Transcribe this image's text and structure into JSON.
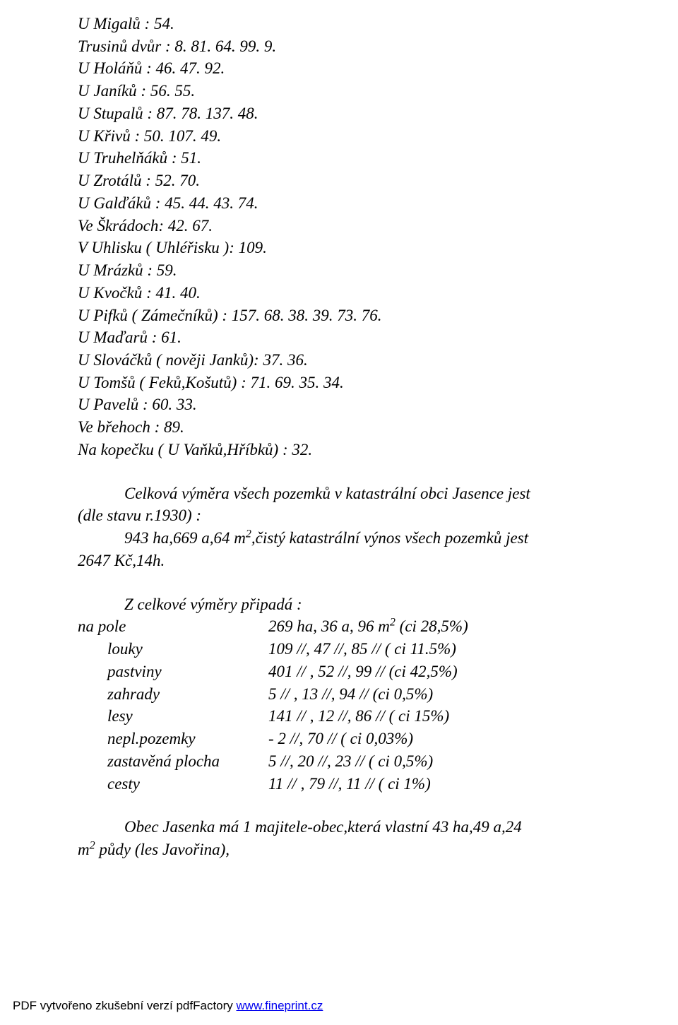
{
  "list": [
    "U Migalů : 54.",
    "Trusinů dvůr : 8. 81. 64. 99. 9.",
    "U Holáňů : 46. 47. 92.",
    "U Janíků : 56. 55.",
    "U Stupalů : 87. 78. 137. 48.",
    "U Křivů : 50. 107. 49.",
    "U Truhelňáků : 51.",
    "U Zrotálů : 52. 70.",
    "U Galďáků : 45. 44. 43. 74.",
    "Ve Škrádoch: 42. 67.",
    "V Uhlisku ( Uhléřisku ): 109.",
    "U Mrázků : 59.",
    "U Kvočků : 41. 40.",
    "U Pifků ( Zámečníků) : 157. 68. 38. 39. 73. 76.",
    "U Maďarů : 61.",
    "U Slováčků ( nověji Janků): 37. 36.",
    "U Tomšů ( Feků,Košutů) : 71. 69. 35. 34.",
    "U Pavelů : 60. 33.",
    "Ve břehoch : 89.",
    "Na kopečku ( U Vaňků,Hříbků) : 32."
  ],
  "para1": {
    "l1": "Celková výměra všech pozemků v katastrální obci Jasence jest",
    "l2": "(dle stavu r.1930) :",
    "l3_pre": "943 ha,669 a,64 m",
    "l3_sup": "2",
    "l3_post": ",čistý katastrální výnos všech pozemků jest",
    "l4": "2647 Kč,14h."
  },
  "para2": {
    "header": "Z celkové výměry připadá :",
    "rows": [
      {
        "label": "na pole",
        "value_pre": "269 ha, 36 a, 96 m",
        "value_sup": "2",
        "value_post": " (ci 28,5%)",
        "indent": "na"
      },
      {
        "label": "louky",
        "value_pre": "109 //,  47 //,  85 // ( ci 11.5%)",
        "value_sup": "",
        "value_post": "",
        "indent": "in"
      },
      {
        "label": "pastviny",
        "value_pre": "401 // ,  52 //, 99 // (ci 42,5%)",
        "value_sup": "",
        "value_post": "",
        "indent": "in"
      },
      {
        "label": "zahrady",
        "value_pre": "    5 // , 13 //, 94 //  (ci 0,5%)",
        "value_sup": "",
        "value_post": "",
        "indent": "in"
      },
      {
        "label": "lesy",
        "value_pre": "141 // , 12 //, 86 //  ( ci 15%)",
        "value_sup": "",
        "value_post": "",
        "indent": "in"
      },
      {
        "label": "nepl.pozemky",
        "value_pre": "   -       2 //, 70 // ( ci 0,03%)",
        "value_sup": "",
        "value_post": "",
        "indent": "in"
      },
      {
        "label": "zastavěná plocha",
        "value_pre": "    5 //, 20 //, 23 //  ( ci 0,5%)",
        "value_sup": "",
        "value_post": "",
        "indent": "in"
      },
      {
        "label": "cesty",
        "value_pre": "  11 // , 79 //, 11 // ( ci 1%)",
        "value_sup": "",
        "value_post": "",
        "indent": "in"
      }
    ]
  },
  "para3": {
    "l1": "Obec Jasenka má 1 majitele-obec,která vlastní 43 ha,49 a,24",
    "l2_pre": "m",
    "l2_sup": "2",
    "l2_post": " půdy (les Javořina),"
  },
  "footer": {
    "text": "PDF vytvořeno zkušební verzí pdfFactory ",
    "link": "www.fineprint.cz"
  }
}
